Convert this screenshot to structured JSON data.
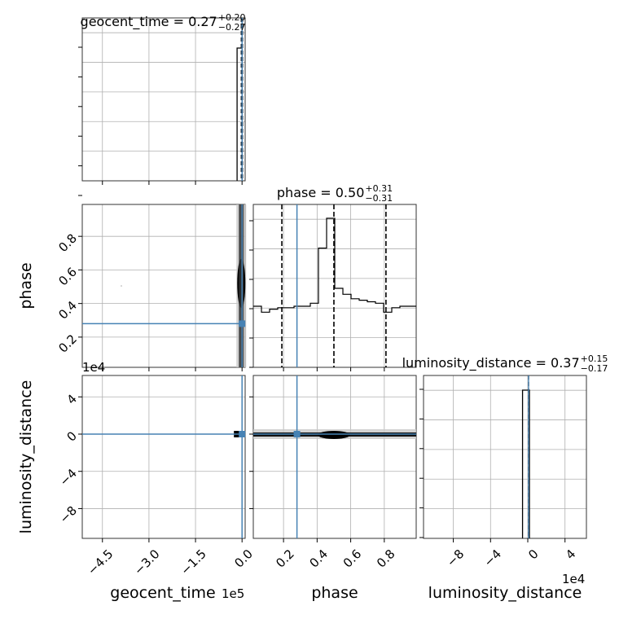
{
  "chart_data": {
    "type": "corner",
    "parameters": [
      "geocent_time",
      "phase",
      "luminosity_distance"
    ],
    "truth_color": "#4682b4",
    "titles": [
      {
        "param": "geocent_time",
        "median": "0.27",
        "plus": "+0.20",
        "minus": "−0.27"
      },
      {
        "param": "phase",
        "median": "0.50",
        "plus": "+0.31",
        "minus": "−0.31"
      },
      {
        "param": "luminosity_distance",
        "median": "0.37",
        "plus": "+0.15",
        "minus": "−0.17"
      }
    ],
    "axis_labels": {
      "x": [
        "geocent_time",
        "phase",
        "luminosity_distance"
      ],
      "y": [
        "phase",
        "luminosity_distance"
      ]
    },
    "offset_labels": {
      "geocent_time_x": "1e5",
      "luminosity_distance_x": "1e4",
      "luminosity_distance_y": "1e4"
    },
    "ticks": {
      "geocent_time": {
        "values": [
          -450000,
          -300000,
          -150000,
          0
        ],
        "labels": [
          "−4.5",
          "−3.0",
          "−1.5",
          "0.0"
        ]
      },
      "phase": {
        "values": [
          0.2,
          0.4,
          0.6,
          0.8
        ],
        "labels": [
          "0.2",
          "0.4",
          "0.6",
          "0.8"
        ]
      },
      "luminosity_distance": {
        "values": [
          -80000,
          -40000,
          0,
          40000
        ],
        "labels": [
          "−8",
          "−4",
          "0",
          "4"
        ]
      }
    },
    "ranges": {
      "geocent_time": [
        -515000,
        10000
      ],
      "phase": [
        0.02,
        0.99
      ],
      "luminosity_distance": [
        -112000,
        63000
      ]
    },
    "truths": {
      "geocent_time": 0.27,
      "phase": 0.28,
      "luminosity_distance": 0.37
    },
    "quantiles": {
      "geocent_time": [
        0.0,
        0.27,
        0.47
      ],
      "phase": [
        0.19,
        0.5,
        0.81
      ],
      "luminosity_distance": [
        0.2,
        0.37,
        0.52
      ]
    },
    "histograms": {
      "phase": {
        "bins": [
          0.02,
          0.0685,
          0.117,
          0.1655,
          0.214,
          0.2625,
          0.311,
          0.3595,
          0.408,
          0.4565,
          0.505,
          0.5535,
          0.602,
          0.6505,
          0.699,
          0.7475,
          0.796,
          0.8445,
          0.893,
          0.9415,
          0.99
        ],
        "counts": [
          41,
          37,
          39,
          40,
          40,
          41,
          41,
          43,
          80,
          100,
          53,
          49,
          46,
          45,
          44,
          43,
          37,
          40,
          41,
          41
        ]
      },
      "geocent_time": {
        "bins": [
          -16000,
          -8000,
          0
        ],
        "counts": [
          100,
          100
        ]
      },
      "luminosity_distance": {
        "bins": [
          -3000,
          -1500,
          0
        ],
        "counts": [
          100,
          100
        ]
      }
    },
    "grid": true
  }
}
